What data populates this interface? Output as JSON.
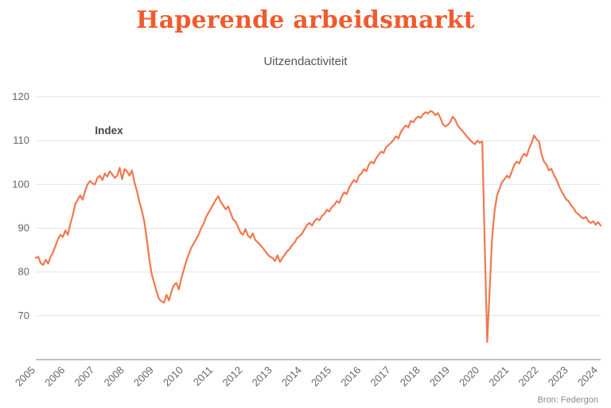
{
  "page": {
    "title": "Haperende arbeidsmarkt",
    "subtitle": "Uitzendactiviteit",
    "source": "Bron: Federgon"
  },
  "colors": {
    "title": "#ee5b2e",
    "line": "#f0784f",
    "grid": "#e2e2e2",
    "axis": "#9a9a9a",
    "tick_text": "#666666",
    "annotation_text": "#444444"
  },
  "chart_data": {
    "type": "line",
    "title": "Haperende arbeidsmarkt",
    "subtitle": "Uitzendactiviteit",
    "series_name": "Uitzendactiviteit index",
    "frequency": "monthly",
    "x_start_year": 2005,
    "x_start_month": 1,
    "ylim": [
      60,
      120
    ],
    "yticks": [
      70,
      80,
      90,
      100,
      110,
      120
    ],
    "baseline_value": 60,
    "x_tick_years": [
      2005,
      2006,
      2007,
      2008,
      2009,
      2010,
      2011,
      2012,
      2013,
      2014,
      2015,
      2016,
      2017,
      2018,
      2019,
      2020,
      2021,
      2022,
      2023,
      2024
    ],
    "grid": "horizontal",
    "legend": "none",
    "annotation": {
      "text": "Index",
      "x_index": 24,
      "value": 111.5
    },
    "source": "Bron: Federgon",
    "values": [
      83.2,
      83.5,
      82.0,
      81.6,
      82.8,
      81.9,
      83.5,
      84.5,
      86.0,
      87.5,
      88.5,
      88.0,
      89.5,
      88.5,
      91.0,
      93.0,
      95.5,
      96.5,
      97.5,
      96.5,
      98.5,
      100.0,
      100.8,
      100.2,
      100.0,
      101.5,
      102.0,
      101.0,
      102.5,
      101.8,
      103.0,
      102.3,
      101.5,
      102.0,
      103.8,
      101.2,
      103.5,
      103.0,
      102.0,
      103.2,
      100.5,
      98.5,
      96.0,
      94.0,
      91.5,
      87.5,
      83.0,
      79.5,
      77.5,
      75.5,
      73.8,
      73.3,
      73.0,
      74.8,
      73.5,
      75.5,
      77.0,
      77.5,
      76.0,
      78.5,
      80.5,
      82.5,
      84.0,
      85.5,
      86.5,
      87.5,
      88.5,
      90.0,
      91.0,
      92.5,
      93.5,
      94.5,
      95.5,
      96.5,
      97.3,
      96.0,
      95.2,
      94.3,
      95.0,
      93.5,
      92.0,
      91.5,
      90.3,
      89.0,
      88.5,
      89.8,
      88.3,
      87.8,
      88.8,
      87.3,
      86.8,
      86.2,
      85.5,
      84.8,
      84.0,
      83.5,
      83.2,
      82.5,
      83.8,
      82.3,
      83.2,
      84.0,
      84.8,
      85.3,
      86.2,
      86.8,
      87.8,
      88.2,
      88.8,
      89.8,
      90.8,
      91.2,
      90.6,
      91.6,
      92.2,
      91.8,
      92.8,
      93.3,
      94.2,
      93.8,
      94.8,
      95.3,
      96.2,
      95.8,
      97.2,
      98.2,
      97.8,
      99.2,
      100.2,
      101.0,
      100.5,
      102.0,
      102.5,
      103.5,
      103.0,
      104.5,
      105.2,
      104.8,
      106.0,
      106.8,
      107.5,
      107.2,
      108.5,
      109.0,
      109.5,
      110.2,
      111.0,
      110.5,
      112.0,
      112.8,
      113.5,
      113.0,
      114.5,
      114.2,
      115.0,
      115.5,
      115.2,
      116.0,
      116.5,
      116.2,
      116.8,
      116.5,
      115.8,
      116.3,
      115.2,
      113.8,
      113.2,
      113.6,
      114.2,
      115.5,
      114.8,
      113.5,
      112.8,
      112.2,
      111.5,
      110.8,
      110.2,
      109.6,
      109.2,
      110.0,
      109.5,
      109.8,
      86.0,
      64.0,
      76.0,
      88.0,
      94.0,
      97.5,
      99.0,
      100.5,
      101.2,
      102.0,
      101.5,
      103.0,
      104.5,
      105.2,
      104.8,
      106.2,
      107.0,
      106.5,
      108.2,
      109.5,
      111.2,
      110.3,
      109.8,
      107.0,
      105.2,
      104.6,
      103.2,
      103.6,
      102.2,
      101.2,
      99.8,
      98.6,
      97.6,
      96.6,
      96.2,
      95.2,
      94.6,
      93.6,
      93.2,
      92.6,
      92.2,
      92.6,
      91.6,
      91.2,
      91.6,
      90.8,
      91.4,
      90.6
    ]
  }
}
